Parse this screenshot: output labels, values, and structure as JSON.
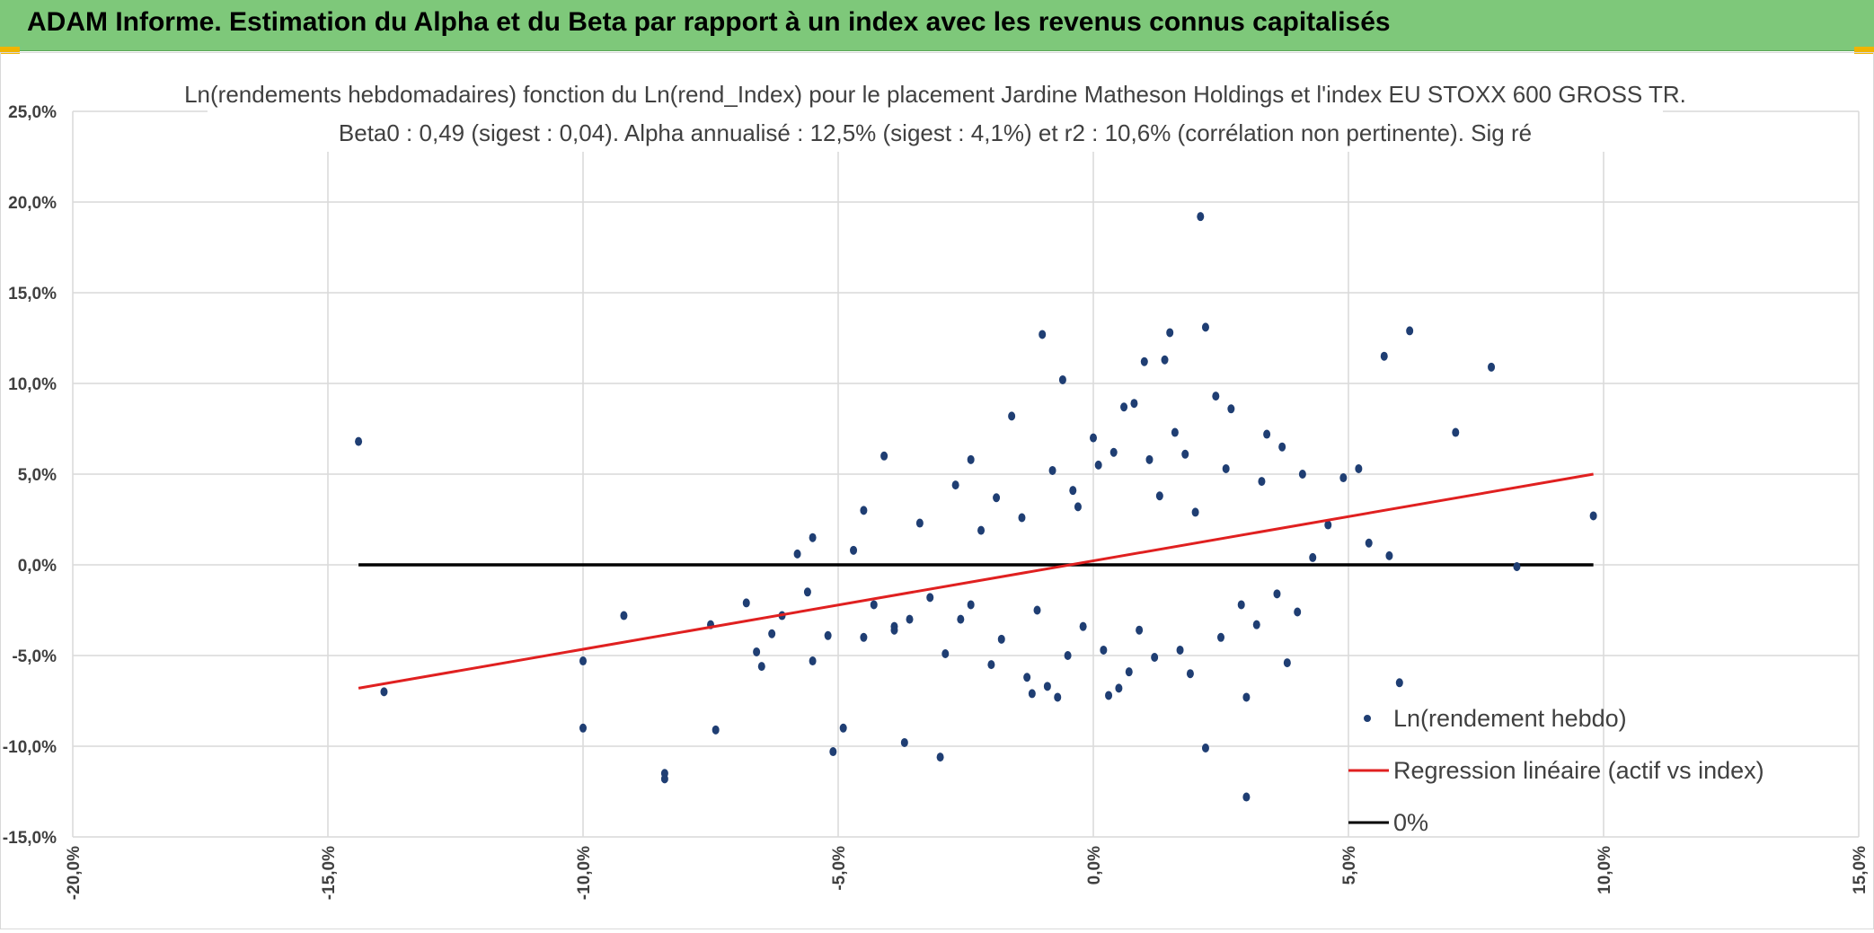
{
  "header": {
    "title": "ADAM Informe. Estimation du Alpha et du Beta par rapport à un index avec les revenus connus capitalisés"
  },
  "colors": {
    "header_bg": "#7ec87a",
    "points": "#1f3e73",
    "regression": "#e02020",
    "zero": "#000000",
    "grid": "#d9d9d9"
  },
  "chart_data": {
    "type": "scatter",
    "title": "Ln(rendements hebdomadaires) fonction du Ln(rend_Index) pour le placement Jardine Matheson Holdings et l'index EU STOXX 600 GROSS TR.",
    "subtitle": "Beta0 : 0,49 (sigest : 0,04). Alpha annualisé : 12,5% (sigest : 4,1%) et r2 : 10,6% (corrélation non pertinente). Sig ré",
    "xlabel": "",
    "ylabel": "",
    "xlim": [
      -20,
      15
    ],
    "ylim": [
      -15,
      25
    ],
    "x_ticks": [
      "-20,0%",
      "-15,0%",
      "-10,0%",
      "-5,0%",
      "0,0%",
      "5,0%",
      "10,0%",
      "15,0%"
    ],
    "y_ticks": [
      "25,0%",
      "20,0%",
      "15,0%",
      "10,0%",
      "5,0%",
      "0,0%",
      "-5,0%",
      "-10,0%",
      "-15,0%"
    ],
    "grid": true,
    "legend_position": "bottom-right",
    "series": [
      {
        "name": "Ln(rendement hebdo)",
        "type": "scatter",
        "points": [
          [
            -14.4,
            6.8
          ],
          [
            -13.9,
            -7.0
          ],
          [
            -10.0,
            -5.3
          ],
          [
            -10.0,
            -9.0
          ],
          [
            -9.2,
            -2.8
          ],
          [
            -8.4,
            -11.8
          ],
          [
            -8.4,
            -11.5
          ],
          [
            -7.5,
            -3.3
          ],
          [
            -7.4,
            -9.1
          ],
          [
            -6.6,
            -4.8
          ],
          [
            -6.5,
            -5.6
          ],
          [
            -6.1,
            -2.8
          ],
          [
            -5.5,
            1.5
          ],
          [
            -5.5,
            -5.3
          ],
          [
            -5.1,
            -10.3
          ],
          [
            -4.9,
            -9.0
          ],
          [
            -4.5,
            3.0
          ],
          [
            -4.5,
            -4.0
          ],
          [
            -4.1,
            6.0
          ],
          [
            -3.9,
            -3.4
          ],
          [
            -3.9,
            -3.6
          ],
          [
            -3.7,
            -9.8
          ],
          [
            -3.0,
            -10.6
          ],
          [
            -2.7,
            4.4
          ],
          [
            -2.4,
            5.8
          ],
          [
            -1.9,
            3.7
          ],
          [
            -1.6,
            8.2
          ],
          [
            -1.2,
            -7.1
          ],
          [
            -1.0,
            12.7
          ],
          [
            -0.6,
            10.2
          ],
          [
            -0.8,
            5.2
          ],
          [
            -0.9,
            -6.7
          ],
          [
            -0.7,
            -7.3
          ],
          [
            -0.5,
            -5.0
          ],
          [
            0.0,
            7.0
          ],
          [
            0.3,
            -7.2
          ],
          [
            0.5,
            -6.8
          ],
          [
            0.6,
            8.7
          ],
          [
            0.8,
            8.9
          ],
          [
            1.0,
            11.2
          ],
          [
            1.4,
            11.3
          ],
          [
            1.5,
            12.8
          ],
          [
            1.6,
            7.3
          ],
          [
            1.9,
            -6.0
          ],
          [
            2.1,
            19.2
          ],
          [
            2.2,
            13.1
          ],
          [
            2.2,
            -10.1
          ],
          [
            2.4,
            9.3
          ],
          [
            2.7,
            8.6
          ],
          [
            3.0,
            -7.3
          ],
          [
            3.0,
            -12.8
          ],
          [
            3.2,
            -3.3
          ],
          [
            3.4,
            7.2
          ],
          [
            3.7,
            6.5
          ],
          [
            3.8,
            -5.4
          ],
          [
            4.1,
            5.0
          ],
          [
            4.6,
            2.2
          ],
          [
            4.9,
            4.8
          ],
          [
            5.2,
            5.3
          ],
          [
            5.4,
            1.2
          ],
          [
            5.7,
            11.5
          ],
          [
            5.8,
            0.5
          ],
          [
            6.0,
            -6.5
          ],
          [
            6.2,
            12.9
          ],
          [
            7.1,
            7.3
          ],
          [
            7.8,
            10.9
          ],
          [
            8.3,
            -0.1
          ],
          [
            9.8,
            2.7
          ],
          [
            -6.8,
            -2.1
          ],
          [
            -6.3,
            -3.8
          ],
          [
            -5.8,
            0.6
          ],
          [
            -5.6,
            -1.5
          ],
          [
            -5.2,
            -3.9
          ],
          [
            -4.7,
            0.8
          ],
          [
            -4.3,
            -2.2
          ],
          [
            -3.4,
            2.3
          ],
          [
            -3.2,
            -1.8
          ],
          [
            -2.9,
            -4.9
          ],
          [
            -2.6,
            -3.0
          ],
          [
            -2.2,
            1.9
          ],
          [
            -2.0,
            -5.5
          ],
          [
            -1.8,
            -4.1
          ],
          [
            -1.4,
            2.6
          ],
          [
            -1.3,
            -6.2
          ],
          [
            -0.4,
            4.1
          ],
          [
            0.1,
            5.5
          ],
          [
            0.2,
            -4.7
          ],
          [
            0.4,
            6.2
          ],
          [
            0.7,
            -5.9
          ],
          [
            1.1,
            5.8
          ],
          [
            1.2,
            -5.1
          ],
          [
            1.7,
            -4.7
          ],
          [
            1.8,
            6.1
          ],
          [
            2.5,
            -4.0
          ],
          [
            2.6,
            5.3
          ],
          [
            2.9,
            -2.2
          ],
          [
            3.3,
            4.6
          ],
          [
            3.6,
            -1.6
          ],
          [
            4.3,
            0.4
          ],
          [
            4.0,
            -2.6
          ],
          [
            -3.6,
            -3.0
          ],
          [
            -2.4,
            -2.2
          ],
          [
            -0.2,
            -3.4
          ],
          [
            1.3,
            3.8
          ],
          [
            0.9,
            -3.6
          ],
          [
            -1.1,
            -2.5
          ],
          [
            2.0,
            2.9
          ],
          [
            -0.3,
            3.2
          ]
        ]
      },
      {
        "name": "Regression linéaire (actif vs index)",
        "type": "line",
        "points": [
          [
            -14.4,
            -6.8
          ],
          [
            9.8,
            5.0
          ]
        ]
      },
      {
        "name": "0%",
        "type": "line",
        "points": [
          [
            -14.4,
            0.0
          ],
          [
            9.8,
            0.0
          ]
        ]
      }
    ]
  }
}
